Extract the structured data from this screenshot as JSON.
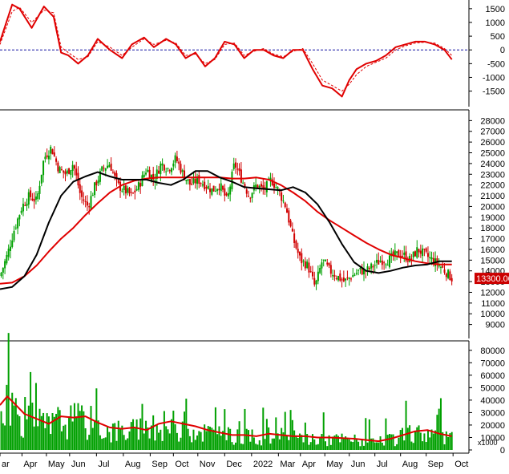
{
  "colors": {
    "background": "#ffffff",
    "frame": "#000000",
    "price_up": "#00a000",
    "price_down": "#d00000",
    "ma_fast": "#000000",
    "ma_slow": "#e00000",
    "volume": "#00a000",
    "volume_ma": "#e00000",
    "macd": "#e00000",
    "macd_signal": "#e00000",
    "zero_line": "#1010a0",
    "last_price_bg": "#cc0000",
    "last_price_text": "#ffffff"
  },
  "chart_data": [
    {
      "type": "line",
      "name": "macd",
      "ylim": [
        -1950,
        1700
      ],
      "yticks": [
        1500,
        1000,
        500,
        0,
        -500,
        -1000,
        -1500
      ],
      "zero_line": 0,
      "months_index": [
        0,
        1,
        2,
        3,
        4,
        5,
        6,
        7,
        8,
        9,
        10,
        11,
        12,
        13,
        14,
        15,
        16,
        17,
        18,
        19
      ],
      "series": [
        {
          "role": "macd",
          "x": [
            0,
            0.5,
            0.8,
            1.3,
            1.8,
            2.2,
            2.5,
            2.8,
            3.2,
            3.6,
            4.0,
            4.5,
            5.0,
            5.4,
            5.9,
            6.3,
            6.8,
            7.2,
            7.6,
            8.0,
            8.4,
            8.8,
            9.2,
            9.6,
            10.0,
            10.4,
            10.8,
            11.2,
            11.6,
            12.0,
            12.4,
            12.8,
            13.2,
            13.6,
            14.0,
            14.3,
            14.6,
            15.0,
            15.4,
            15.8,
            16.2,
            16.6,
            17.0,
            17.4,
            17.8,
            18.2,
            18.5
          ],
          "y": [
            300,
            1650,
            1500,
            800,
            1580,
            1200,
            -100,
            -200,
            -500,
            -200,
            400,
            0,
            -300,
            200,
            450,
            100,
            400,
            200,
            -300,
            -100,
            -600,
            -300,
            300,
            200,
            -300,
            0,
            0,
            -200,
            -300,
            0,
            0,
            -700,
            -1300,
            -1400,
            -1700,
            -1100,
            -700,
            -500,
            -400,
            -200,
            100,
            200,
            300,
            300,
            200,
            0,
            -350
          ]
        },
        {
          "role": "signal",
          "x": [
            0,
            0.5,
            0.8,
            1.3,
            1.8,
            2.2,
            2.5,
            2.8,
            3.2,
            3.6,
            4.0,
            4.5,
            5.0,
            5.4,
            5.9,
            6.3,
            6.8,
            7.2,
            7.6,
            8.0,
            8.4,
            8.8,
            9.2,
            9.6,
            10.0,
            10.4,
            10.8,
            11.2,
            11.6,
            12.0,
            12.4,
            12.8,
            13.2,
            13.6,
            14.0,
            14.3,
            14.6,
            15.0,
            15.4,
            15.8,
            16.2,
            16.6,
            17.0,
            17.4,
            17.8,
            18.2,
            18.5
          ],
          "y": [
            200,
            1400,
            1550,
            1000,
            1450,
            1350,
            100,
            -100,
            -350,
            -250,
            300,
            100,
            -200,
            100,
            400,
            200,
            350,
            250,
            -200,
            -150,
            -500,
            -350,
            200,
            250,
            -200,
            -50,
            50,
            -150,
            -250,
            -50,
            50,
            -500,
            -1100,
            -1300,
            -1500,
            -1250,
            -900,
            -600,
            -450,
            -300,
            0,
            150,
            250,
            280,
            250,
            50,
            -200
          ]
        }
      ]
    },
    {
      "type": "candlestick",
      "name": "price",
      "ylim": [
        8000,
        28700
      ],
      "yticks": [
        28000,
        27000,
        26000,
        25000,
        24000,
        23000,
        22000,
        21000,
        20000,
        19000,
        18000,
        17000,
        16000,
        15000,
        14000,
        13000,
        12000,
        11000,
        10000,
        9000
      ],
      "last_price_label": "13300.00",
      "last_price": 13300,
      "close_path": {
        "x": [
          0,
          0.3,
          0.6,
          0.9,
          1.2,
          1.5,
          1.8,
          2.1,
          2.4,
          2.7,
          3.0,
          3.3,
          3.6,
          3.9,
          4.2,
          4.5,
          4.8,
          5.1,
          5.4,
          5.7,
          6.0,
          6.3,
          6.6,
          6.9,
          7.2,
          7.5,
          7.8,
          8.1,
          8.4,
          8.7,
          9.0,
          9.3,
          9.6,
          9.9,
          10.2,
          10.5,
          10.8,
          11.1,
          11.4,
          11.7,
          12.0,
          12.3,
          12.6,
          12.9,
          13.2,
          13.5,
          13.8,
          14.1,
          14.4,
          14.7,
          15.0,
          15.3,
          15.6,
          15.9,
          16.2,
          16.5,
          16.8,
          17.1,
          17.4,
          17.7,
          18.0,
          18.3,
          18.5
        ],
        "y": [
          13500,
          15500,
          18000,
          20000,
          21000,
          20500,
          24500,
          25500,
          23500,
          23000,
          24000,
          21000,
          20000,
          22000,
          23500,
          24000,
          22000,
          21500,
          21000,
          22000,
          23500,
          22500,
          24000,
          23500,
          24500,
          23000,
          22000,
          22500,
          22000,
          21500,
          22000,
          20500,
          24000,
          22500,
          21000,
          22000,
          21500,
          22500,
          21500,
          20000,
          17000,
          15000,
          14500,
          12500,
          15000,
          14000,
          13500,
          13000,
          13500,
          14000,
          14000,
          14500,
          15000,
          15000,
          15500,
          15500,
          15000,
          16000,
          15500,
          15000,
          14500,
          13800,
          13300
        ]
      },
      "ma_fast": {
        "x": [
          0,
          0.5,
          1.0,
          1.5,
          2.0,
          2.5,
          3.0,
          3.5,
          4.0,
          4.5,
          5.0,
          5.5,
          6.0,
          6.5,
          7.0,
          7.5,
          8.0,
          8.5,
          9.0,
          9.5,
          10.0,
          10.5,
          11.0,
          11.5,
          12.0,
          12.5,
          13.0,
          13.5,
          14.0,
          14.5,
          15.0,
          15.5,
          16.0,
          16.5,
          17.0,
          17.5,
          18.0,
          18.5
        ],
        "y": [
          12300,
          12500,
          13500,
          15500,
          18500,
          21000,
          22300,
          22800,
          23200,
          22800,
          22500,
          22500,
          22500,
          22200,
          22000,
          22500,
          23300,
          23300,
          22700,
          22300,
          21800,
          21700,
          21600,
          21500,
          21800,
          21300,
          20200,
          18500,
          16500,
          14800,
          14000,
          13800,
          14000,
          14300,
          14500,
          14600,
          14900,
          14900
        ]
      },
      "ma_slow": {
        "x": [
          0,
          0.5,
          1.0,
          1.5,
          2.0,
          2.5,
          3.0,
          3.5,
          4.0,
          4.5,
          5.0,
          5.5,
          6.0,
          6.5,
          7.0,
          7.5,
          8.0,
          8.5,
          9.0,
          9.5,
          10.0,
          10.5,
          11.0,
          11.5,
          12.0,
          12.5,
          13.0,
          13.5,
          14.0,
          14.5,
          15.0,
          15.5,
          16.0,
          16.5,
          17.0,
          17.5,
          18.0,
          18.5
        ],
        "y": [
          12800,
          12900,
          13500,
          14500,
          15800,
          17000,
          18000,
          19200,
          20300,
          21300,
          22000,
          22400,
          22600,
          22700,
          22700,
          22700,
          22700,
          22700,
          22700,
          22600,
          22600,
          22700,
          22500,
          22000,
          21300,
          20500,
          19500,
          18700,
          18000,
          17300,
          16600,
          16000,
          15500,
          15200,
          14900,
          14700,
          14600,
          14600
        ]
      }
    },
    {
      "type": "bar",
      "name": "volume",
      "ylim": [
        0,
        85000
      ],
      "yticks": [
        80000,
        70000,
        60000,
        50000,
        40000,
        30000,
        20000,
        10000,
        0
      ],
      "unit_label": "x1000",
      "volume_ma": {
        "x": [
          0,
          0.3,
          0.6,
          1.0,
          1.5,
          2.0,
          2.5,
          3.0,
          3.5,
          4.0,
          4.5,
          5.0,
          5.5,
          6.0,
          6.5,
          7.0,
          7.5,
          8.0,
          8.5,
          9.0,
          9.5,
          10.0,
          10.5,
          11.0,
          11.5,
          12.0,
          12.5,
          13.0,
          13.5,
          14.0,
          14.5,
          15.0,
          15.5,
          16.0,
          16.5,
          17.0,
          17.5,
          18.0,
          18.5
        ],
        "y": [
          36000,
          43000,
          37000,
          29000,
          25000,
          21000,
          27000,
          26000,
          27000,
          22000,
          18000,
          17000,
          18000,
          16000,
          21000,
          23000,
          21000,
          19000,
          16000,
          14000,
          12000,
          12000,
          11000,
          13000,
          12000,
          11000,
          11000,
          10000,
          10000,
          9500,
          9000,
          8000,
          7000,
          9000,
          12000,
          15000,
          16000,
          13000,
          11000
        ]
      }
    }
  ],
  "x_axis": {
    "month_labels": [
      "ar",
      "Apr",
      "May",
      "Jun",
      "Jul",
      "Aug",
      "Sep",
      "Oct",
      "Nov",
      "Dec",
      "2022",
      "Mar",
      "Apr",
      "May",
      "Jun",
      "Jul",
      "Aug",
      "Sep",
      "Oct"
    ],
    "month_positions": [
      0,
      0.9,
      1.9,
      2.85,
      3.95,
      5.05,
      6.15,
      7.1,
      8.1,
      9.2,
      10.3,
      11.4,
      12.3,
      13.3,
      14.3,
      15.35,
      16.4,
      17.45,
      18.55
    ]
  }
}
